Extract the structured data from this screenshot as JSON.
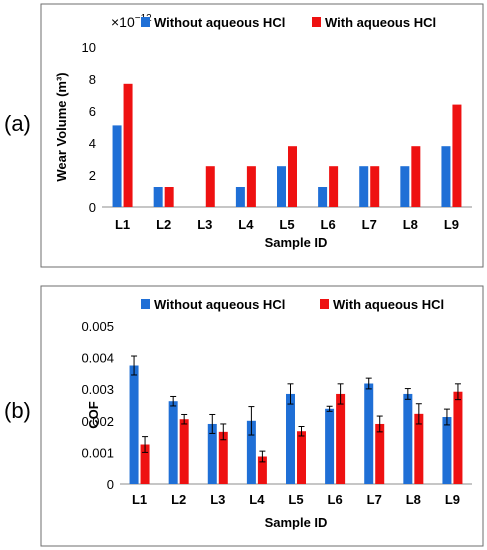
{
  "colors": {
    "without": "#1f6fd6",
    "with": "#ee1111"
  },
  "panels": {
    "a": {
      "label": "(a)"
    },
    "b": {
      "label": "(b)"
    }
  },
  "chart_data": [
    {
      "type": "bar",
      "panel_label": "(a)",
      "categories": [
        "L1",
        "L2",
        "L3",
        "L4",
        "L5",
        "L6",
        "L7",
        "L8",
        "L9"
      ],
      "series": [
        {
          "name": "Without aqueous HCl",
          "values": [
            5.1,
            1.25,
            0,
            1.25,
            2.55,
            1.25,
            2.55,
            2.55,
            3.8
          ]
        },
        {
          "name": "With aqueous HCl",
          "values": [
            7.7,
            1.25,
            2.55,
            2.55,
            3.8,
            2.55,
            2.55,
            3.8,
            6.4
          ]
        }
      ],
      "xlabel": "Sample ID",
      "ylabel": "Wear Volume (m³)",
      "ylim": [
        0,
        10
      ],
      "yticks": [
        "0",
        "2",
        "4",
        "6",
        "8",
        "10"
      ],
      "scale_note": {
        "base": "×10",
        "exponent": "−12"
      },
      "legend": "top",
      "grid": false
    },
    {
      "type": "bar",
      "panel_label": "(b)",
      "categories": [
        "L1",
        "L2",
        "L3",
        "L4",
        "L5",
        "L6",
        "L7",
        "L8",
        "L9"
      ],
      "series": [
        {
          "name": "Without aqueous HCl",
          "values": [
            0.00375,
            0.00262,
            0.0019,
            0.002,
            0.00285,
            0.00238,
            0.00318,
            0.00285,
            0.00212
          ],
          "errors": [
            0.0003,
            0.00015,
            0.0003,
            0.00045,
            0.00032,
            8e-05,
            0.00017,
            0.00017,
            0.00025
          ]
        },
        {
          "name": "With aqueous HCl",
          "values": [
            0.00125,
            0.00205,
            0.00165,
            0.00087,
            0.00167,
            0.00285,
            0.0019,
            0.00222,
            0.00292
          ],
          "errors": [
            0.00025,
            0.00015,
            0.00025,
            0.00017,
            0.00015,
            0.00032,
            0.00025,
            0.00032,
            0.00025
          ]
        }
      ],
      "xlabel": "Sample ID",
      "ylabel": "COF",
      "ylim": [
        0,
        0.005
      ],
      "yticks": [
        "0",
        "0.001",
        "0.002",
        "0.003",
        "0.004",
        "0.005"
      ],
      "legend": "top",
      "grid": false
    }
  ]
}
